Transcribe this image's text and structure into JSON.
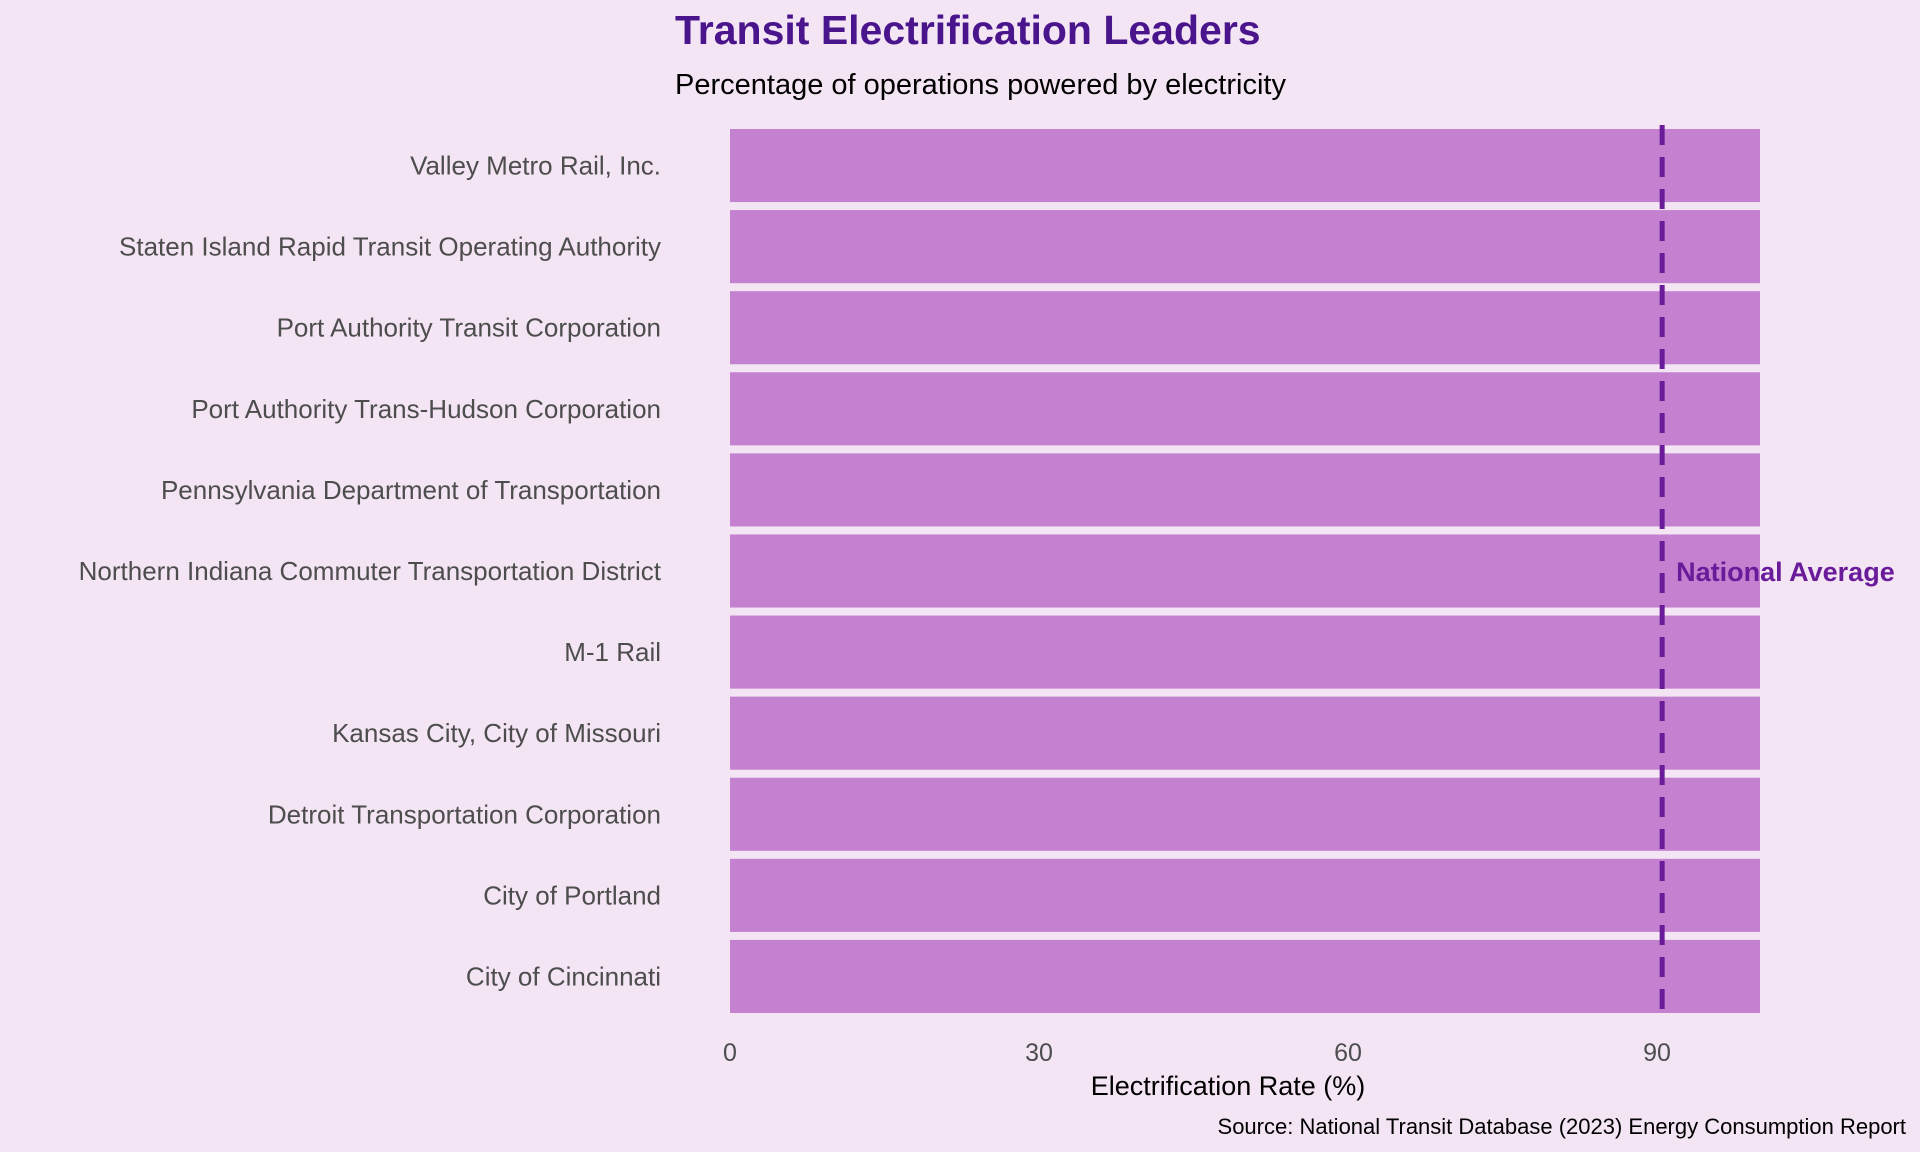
{
  "chart_data": {
    "type": "bar",
    "orientation": "horizontal",
    "title": "Transit Electrification Leaders",
    "subtitle": "Percentage of operations powered by electricity",
    "xlabel": "Electrification Rate (%)",
    "ylabel": "",
    "caption": "Source: National Transit Database (2023) Energy Consumption Report",
    "categories": [
      "Valley Metro Rail, Inc.",
      "Staten Island Rapid Transit Operating Authority",
      "Port Authority Transit Corporation",
      "Port Authority Trans-Hudson Corporation",
      "Pennsylvania Department of Transportation",
      "Northern Indiana Commuter Transportation District",
      "M-1 Rail",
      "Kansas City, City of Missouri",
      "Detroit Transportation Corporation",
      "City of Portland",
      "City of Cincinnati"
    ],
    "values": [
      100,
      100,
      100,
      100,
      100,
      100,
      100,
      100,
      100,
      100,
      100
    ],
    "xlim": [
      0,
      100
    ],
    "xticks": [
      0,
      30,
      60,
      90
    ],
    "reference_line": {
      "label": "National Average",
      "value": 90.5,
      "style": "dashed"
    },
    "grid": false,
    "colors": {
      "background": "#f3e5f3",
      "bar": "#c481d0",
      "reference_line": "#6a1b9a",
      "title": "#4a148c"
    }
  }
}
